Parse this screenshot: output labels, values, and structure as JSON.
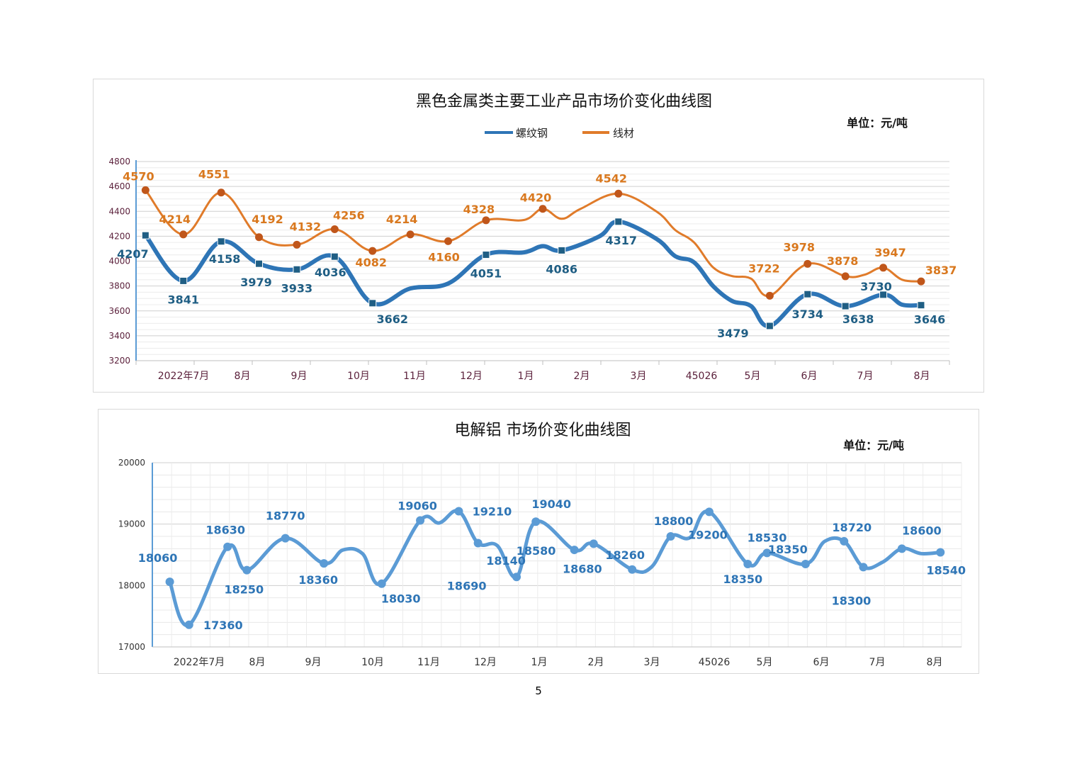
{
  "page_number": "5",
  "chart_data": [
    {
      "type": "line",
      "title": "黑色金属类主要工业产品市场价变化曲线图",
      "unit_label": "单位：元/吨",
      "xlabel": "",
      "ylabel": "",
      "ylim": [
        3200,
        4800
      ],
      "yticks": [
        "3200",
        "3400",
        "3600",
        "3800",
        "4000",
        "4200",
        "4400",
        "4600",
        "4800"
      ],
      "x_tick_labels": [
        "2022年7月",
        "8月",
        "9月",
        "10月",
        "11月",
        "12月",
        "1月",
        "2月",
        "3月",
        "45026",
        "5月",
        "6月",
        "7月",
        "8月"
      ],
      "legend_position": "top",
      "grid": true,
      "colors": {
        "螺纹钢": "#2e75b6",
        "线材": "#e07b2a",
        "螺纹钢_label": "#1f5e84",
        "线材_label": "#d9781e"
      },
      "series": [
        {
          "name": "螺纹钢",
          "points": [
            {
              "i": 0,
              "v": 4207,
              "label": "4207"
            },
            {
              "i": 2,
              "v": 3841,
              "label": "3841"
            },
            {
              "i": 4,
              "v": 4158,
              "label": "4158"
            },
            {
              "i": 6,
              "v": 3979,
              "label": "3979"
            },
            {
              "i": 8,
              "v": 3933,
              "label": "3933"
            },
            {
              "i": 10,
              "v": 4036,
              "label": "4036"
            },
            {
              "i": 12,
              "v": 3662,
              "label": "3662"
            },
            {
              "i": 14,
              "v": 3780
            },
            {
              "i": 16,
              "v": 3820
            },
            {
              "i": 18,
              "v": 4051,
              "label": "4051"
            },
            {
              "i": 20,
              "v": 4070
            },
            {
              "i": 21,
              "v": 4120
            },
            {
              "i": 22,
              "v": 4086,
              "label": "4086"
            },
            {
              "i": 24,
              "v": 4200
            },
            {
              "i": 25,
              "v": 4317,
              "label": "4317"
            },
            {
              "i": 27,
              "v": 4180
            },
            {
              "i": 28,
              "v": 4040
            },
            {
              "i": 29,
              "v": 3990
            },
            {
              "i": 30,
              "v": 3800
            },
            {
              "i": 31,
              "v": 3680
            },
            {
              "i": 32,
              "v": 3640
            },
            {
              "i": 33,
              "v": 3479,
              "label": "3479"
            },
            {
              "i": 35,
              "v": 3734,
              "label": "3734"
            },
            {
              "i": 37,
              "v": 3638,
              "label": "3638"
            },
            {
              "i": 39,
              "v": 3730,
              "label": "3730"
            },
            {
              "i": 40,
              "v": 3650
            },
            {
              "i": 41,
              "v": 3646,
              "label": "3646"
            }
          ]
        },
        {
          "name": "线材",
          "points": [
            {
              "i": 0,
              "v": 4570,
              "label": "4570"
            },
            {
              "i": 2,
              "v": 4214,
              "label": "4214"
            },
            {
              "i": 4,
              "v": 4551,
              "label": "4551"
            },
            {
              "i": 6,
              "v": 4192,
              "label": "4192"
            },
            {
              "i": 8,
              "v": 4132,
              "label": "4132"
            },
            {
              "i": 10,
              "v": 4256,
              "label": "4256"
            },
            {
              "i": 12,
              "v": 4082,
              "label": "4082"
            },
            {
              "i": 14,
              "v": 4214,
              "label": "4214"
            },
            {
              "i": 16,
              "v": 4160,
              "label": "4160"
            },
            {
              "i": 18,
              "v": 4328,
              "label": "4328"
            },
            {
              "i": 20,
              "v": 4330
            },
            {
              "i": 21,
              "v": 4420,
              "label": "4420"
            },
            {
              "i": 22,
              "v": 4340
            },
            {
              "i": 23,
              "v": 4420
            },
            {
              "i": 25,
              "v": 4542,
              "label": "4542"
            },
            {
              "i": 27,
              "v": 4400
            },
            {
              "i": 28,
              "v": 4250
            },
            {
              "i": 29,
              "v": 4150
            },
            {
              "i": 30,
              "v": 3950
            },
            {
              "i": 31,
              "v": 3880
            },
            {
              "i": 32,
              "v": 3860
            },
            {
              "i": 33,
              "v": 3722,
              "label": "3722"
            },
            {
              "i": 35,
              "v": 3978,
              "label": "3978"
            },
            {
              "i": 37,
              "v": 3878,
              "label": "3878"
            },
            {
              "i": 38,
              "v": 3890
            },
            {
              "i": 39,
              "v": 3947,
              "label": "3947"
            },
            {
              "i": 40,
              "v": 3850
            },
            {
              "i": 41,
              "v": 3837,
              "label": "3837"
            }
          ]
        }
      ]
    },
    {
      "type": "line",
      "title": "电解铝  市场价变化曲线图",
      "unit_label": "单位：元/吨",
      "xlabel": "",
      "ylabel": "",
      "ylim": [
        17000,
        20000
      ],
      "yticks": [
        "17000",
        "18000",
        "19000",
        "20000"
      ],
      "x_tick_labels": [
        "2022年7月",
        "8月",
        "9月",
        "10月",
        "11月",
        "12月",
        "1月",
        "2月",
        "3月",
        "45026",
        "5月",
        "6月",
        "7月",
        "8月"
      ],
      "grid": true,
      "colors": {
        "line": "#5b9bd5",
        "label": "#2e75b6"
      },
      "series": [
        {
          "points": [
            {
              "i": 0,
              "v": 18060,
              "label": "18060"
            },
            {
              "i": 1,
              "v": 17360,
              "label": "17360"
            },
            {
              "i": 3,
              "v": 18630,
              "label": "18630"
            },
            {
              "i": 4,
              "v": 18250,
              "label": "18250"
            },
            {
              "i": 6,
              "v": 18770,
              "label": "18770"
            },
            {
              "i": 8,
              "v": 18360,
              "label": "18360"
            },
            {
              "i": 9,
              "v": 18580
            },
            {
              "i": 10,
              "v": 18520
            },
            {
              "i": 11,
              "v": 18030,
              "label": "18030"
            },
            {
              "i": 13,
              "v": 19060,
              "label": "19060"
            },
            {
              "i": 14,
              "v": 19020
            },
            {
              "i": 15,
              "v": 19210,
              "label": "19210"
            },
            {
              "i": 16,
              "v": 18690,
              "label": "18690"
            },
            {
              "i": 17,
              "v": 18650
            },
            {
              "i": 18,
              "v": 18140,
              "label": "18140"
            },
            {
              "i": 19,
              "v": 19040,
              "label": "19040"
            },
            {
              "i": 21,
              "v": 18580,
              "label": "18580"
            },
            {
              "i": 22,
              "v": 18680,
              "label": "18680"
            },
            {
              "i": 24,
              "v": 18260,
              "label": "18260"
            },
            {
              "i": 25,
              "v": 18300
            },
            {
              "i": 26,
              "v": 18800,
              "label": "18800"
            },
            {
              "i": 27,
              "v": 18780
            },
            {
              "i": 28,
              "v": 19200,
              "label": "19200"
            },
            {
              "i": 30,
              "v": 18350,
              "label": "18350"
            },
            {
              "i": 31,
              "v": 18530,
              "label": "18530"
            },
            {
              "i": 33,
              "v": 18350,
              "label": "18350"
            },
            {
              "i": 34,
              "v": 18720
            },
            {
              "i": 35,
              "v": 18720,
              "label": "18720"
            },
            {
              "i": 36,
              "v": 18300,
              "label": "18300"
            },
            {
              "i": 37,
              "v": 18380
            },
            {
              "i": 38,
              "v": 18600,
              "label": "18600"
            },
            {
              "i": 39,
              "v": 18520
            },
            {
              "i": 40,
              "v": 18540,
              "label": "18540"
            }
          ]
        }
      ]
    }
  ]
}
